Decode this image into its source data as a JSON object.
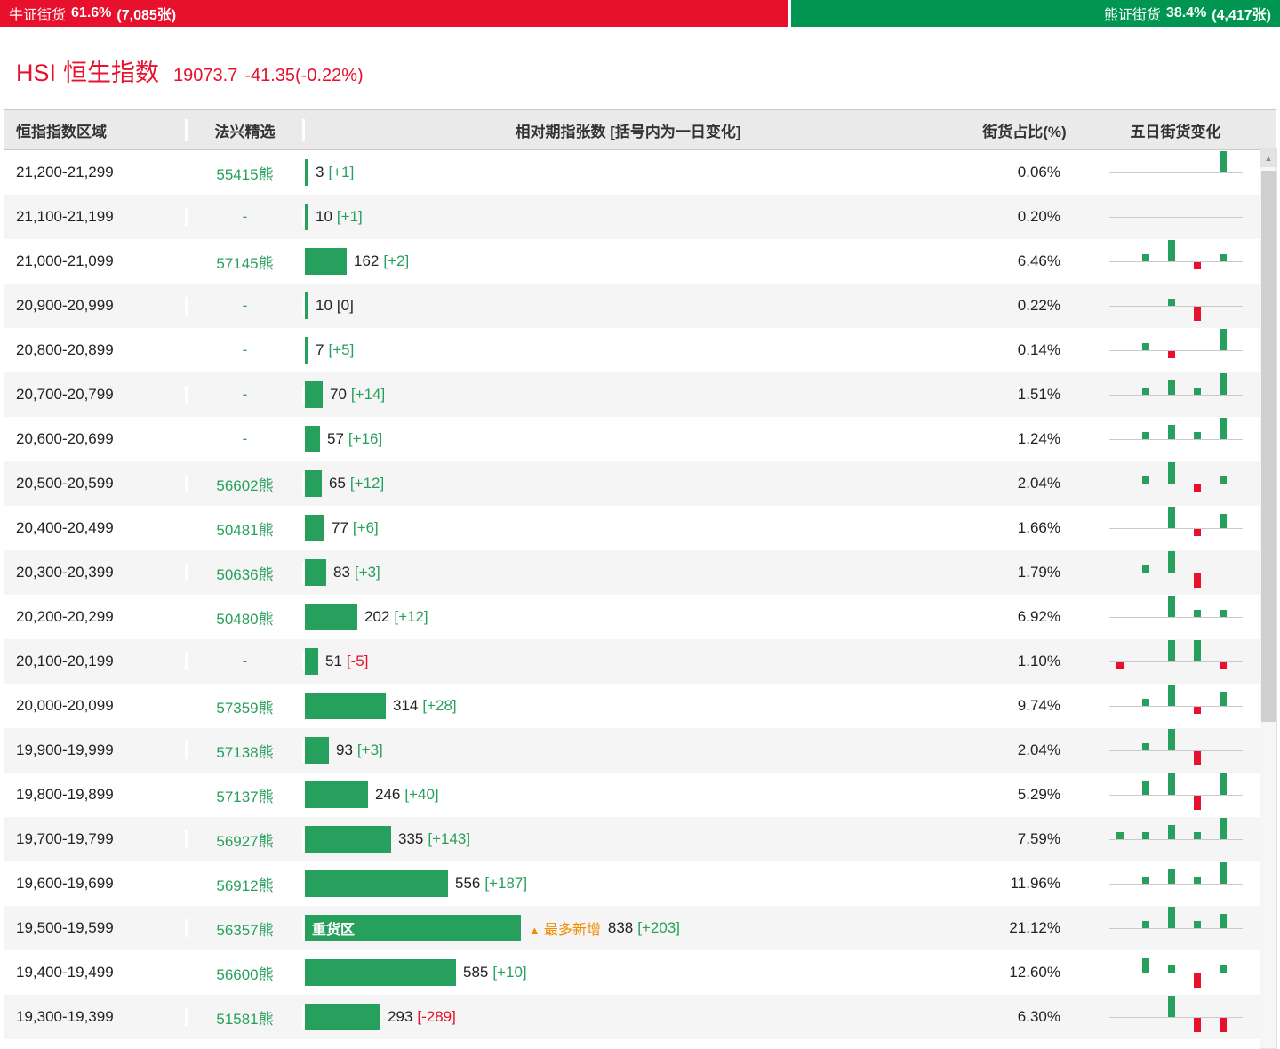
{
  "top_bar": {
    "bull": {
      "label": "牛证街货",
      "pct": "61.6%",
      "count": "(7,085张)",
      "width_pct": 61.6
    },
    "bear": {
      "label": "熊证街货",
      "pct": "38.4%",
      "count": "(4,417张)"
    }
  },
  "index_header": {
    "code": "HSI",
    "name": "恒生指数",
    "price": "19073.7",
    "change": "-41.35(-0.22%)"
  },
  "table": {
    "columns": [
      "恒指指数区域",
      "法兴精选",
      "相对期指张数 [括号内为一日变化]",
      "街货占比(%)",
      "五日街货变化"
    ],
    "heavy_zone_label": "重货区",
    "most_added_icon": "▲",
    "most_added_label": "最多新增",
    "rows": [
      {
        "range": "21,200-21,299",
        "pick": "55415熊",
        "contracts": 3,
        "change": "+1",
        "pct": "0.06%",
        "spark": [
          0,
          0,
          0,
          0,
          3
        ]
      },
      {
        "range": "21,100-21,199",
        "pick": "-",
        "contracts": 10,
        "change": "+1",
        "pct": "0.20%",
        "spark": [
          0,
          0,
          0,
          0,
          0
        ]
      },
      {
        "range": "21,000-21,099",
        "pick": "57145熊",
        "contracts": 162,
        "change": "+2",
        "pct": "6.46%",
        "spark": [
          0,
          1,
          3,
          -1,
          1
        ]
      },
      {
        "range": "20,900-20,999",
        "pick": "-",
        "contracts": 10,
        "change": "0",
        "pct": "0.22%",
        "spark": [
          0,
          0,
          1,
          -2,
          0
        ]
      },
      {
        "range": "20,800-20,899",
        "pick": "-",
        "contracts": 7,
        "change": "+5",
        "pct": "0.14%",
        "spark": [
          0,
          1,
          -1,
          0,
          3
        ]
      },
      {
        "range": "20,700-20,799",
        "pick": "-",
        "contracts": 70,
        "change": "+14",
        "pct": "1.51%",
        "spark": [
          0,
          1,
          2,
          1,
          3
        ]
      },
      {
        "range": "20,600-20,699",
        "pick": "-",
        "contracts": 57,
        "change": "+16",
        "pct": "1.24%",
        "spark": [
          0,
          1,
          2,
          1,
          3
        ]
      },
      {
        "range": "20,500-20,599",
        "pick": "56602熊",
        "contracts": 65,
        "change": "+12",
        "pct": "2.04%",
        "spark": [
          0,
          1,
          3,
          -1,
          1
        ]
      },
      {
        "range": "20,400-20,499",
        "pick": "50481熊",
        "contracts": 77,
        "change": "+6",
        "pct": "1.66%",
        "spark": [
          0,
          0,
          3,
          -1,
          2
        ]
      },
      {
        "range": "20,300-20,399",
        "pick": "50636熊",
        "contracts": 83,
        "change": "+3",
        "pct": "1.79%",
        "spark": [
          0,
          1,
          3,
          -2,
          0
        ]
      },
      {
        "range": "20,200-20,299",
        "pick": "50480熊",
        "contracts": 202,
        "change": "+12",
        "pct": "6.92%",
        "spark": [
          0,
          0,
          3,
          1,
          1
        ]
      },
      {
        "range": "20,100-20,199",
        "pick": "-",
        "contracts": 51,
        "change": "-5",
        "pct": "1.10%",
        "spark": [
          -1,
          0,
          3,
          3,
          -1
        ]
      },
      {
        "range": "20,000-20,099",
        "pick": "57359熊",
        "contracts": 314,
        "change": "+28",
        "pct": "9.74%",
        "spark": [
          0,
          1,
          3,
          -1,
          2
        ]
      },
      {
        "range": "19,900-19,999",
        "pick": "57138熊",
        "contracts": 93,
        "change": "+3",
        "pct": "2.04%",
        "spark": [
          0,
          1,
          3,
          -2,
          0
        ]
      },
      {
        "range": "19,800-19,899",
        "pick": "57137熊",
        "contracts": 246,
        "change": "+40",
        "pct": "5.29%",
        "spark": [
          0,
          2,
          3,
          -2,
          3
        ]
      },
      {
        "range": "19,700-19,799",
        "pick": "56927熊",
        "contracts": 335,
        "change": "+143",
        "pct": "7.59%",
        "spark": [
          1,
          1,
          2,
          1,
          3
        ]
      },
      {
        "range": "19,600-19,699",
        "pick": "56912熊",
        "contracts": 556,
        "change": "+187",
        "pct": "11.96%",
        "spark": [
          0,
          1,
          2,
          1,
          3
        ]
      },
      {
        "range": "19,500-19,599",
        "pick": "56357熊",
        "contracts": 838,
        "change": "+203",
        "pct": "21.12%",
        "heavy": true,
        "spark": [
          0,
          1,
          3,
          1,
          2
        ]
      },
      {
        "range": "19,400-19,499",
        "pick": "56600熊",
        "contracts": 585,
        "change": "+10",
        "pct": "12.60%",
        "spark": [
          0,
          2,
          1,
          -2,
          1
        ]
      },
      {
        "range": "19,300-19,399",
        "pick": "51581熊",
        "contracts": 293,
        "change": "-289",
        "pct": "6.30%",
        "spark": [
          0,
          0,
          3,
          -2,
          -2
        ]
      }
    ]
  },
  "scrollbar": {
    "up_icon": "▲"
  }
}
